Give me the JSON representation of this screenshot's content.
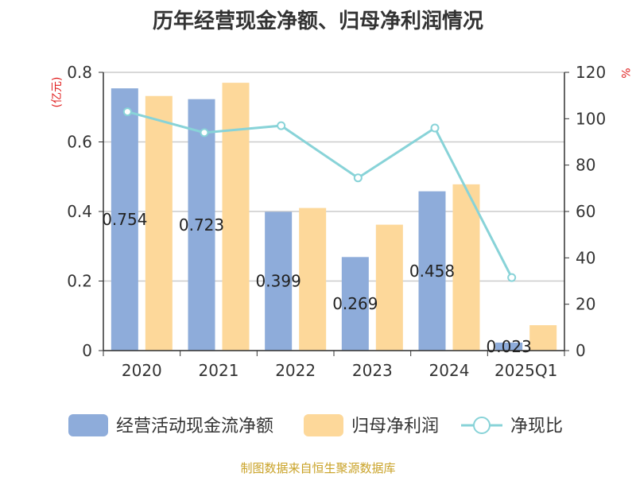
{
  "page_title": "历年经营现金净额、归母净利润情况",
  "footer": "制图数据来自恒生聚源数据库",
  "chart_data": {
    "type": "bar",
    "title": "历年经营现金净额、归母净利润情况",
    "categories": [
      "2020",
      "2021",
      "2022",
      "2023",
      "2024",
      "2025Q1"
    ],
    "series": [
      {
        "name": "经营活动现金流净额",
        "type": "bar",
        "axis": "left",
        "color": "#8EACDA",
        "values": [
          0.754,
          0.723,
          0.399,
          0.269,
          0.458,
          0.023
        ],
        "labels": [
          "0.754",
          "0.723",
          "0.399",
          "0.269",
          "0.458",
          "0.023"
        ]
      },
      {
        "name": "归母净利润",
        "type": "bar",
        "axis": "left",
        "color": "#FDD89A",
        "values": [
          0.732,
          0.77,
          0.41,
          0.362,
          0.478,
          0.073
        ]
      },
      {
        "name": "净现比",
        "type": "line",
        "axis": "right",
        "color": "#88D3D8",
        "values": [
          103,
          94,
          97,
          74.5,
          96,
          31.5
        ]
      }
    ],
    "y_left": {
      "label": "(亿元)",
      "ylim": [
        0,
        0.8
      ],
      "ticks": [
        "0",
        "0.2",
        "0.4",
        "0.6",
        "0.8"
      ]
    },
    "y_right": {
      "label": "%",
      "ylim": [
        0,
        120
      ],
      "ticks": [
        "0",
        "20",
        "40",
        "60",
        "80",
        "100",
        "120"
      ]
    },
    "grid": true,
    "legend": "bottom"
  }
}
